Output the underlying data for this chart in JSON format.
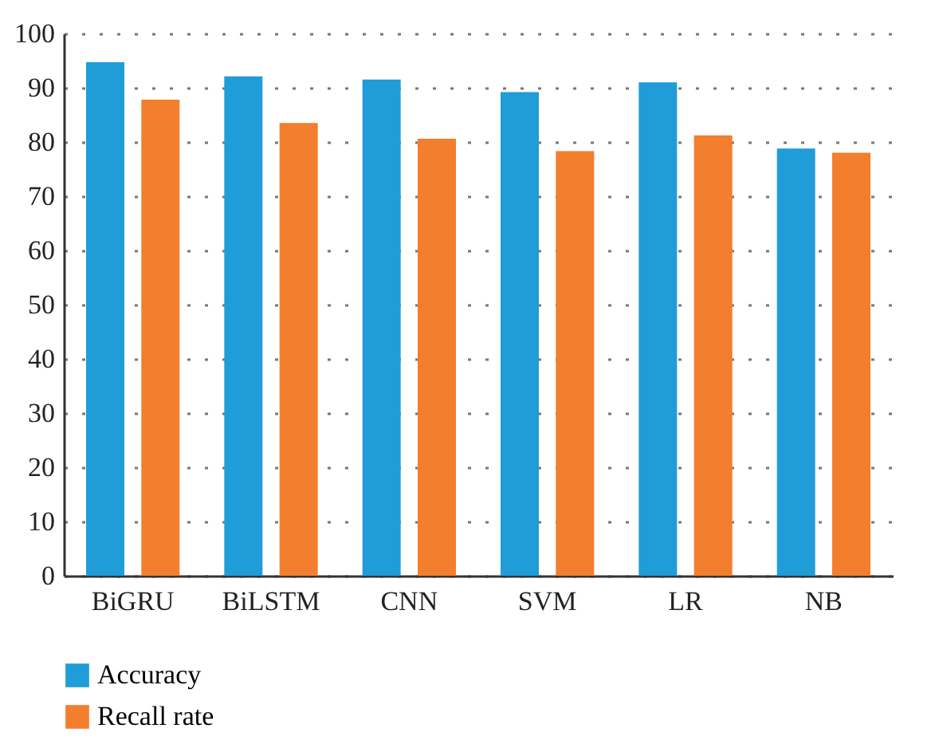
{
  "chart_data": {
    "type": "bar",
    "categories": [
      "BiGRU",
      "BiLSTM",
      "CNN",
      "SVM",
      "LR",
      "NB"
    ],
    "series": [
      {
        "name": "Accuracy",
        "color": "#209cd8",
        "values": [
          94.7,
          92.1,
          91.5,
          89.2,
          91.0,
          78.8
        ]
      },
      {
        "name": "Recall rate",
        "color": "#f37e2e",
        "values": [
          87.8,
          83.5,
          80.6,
          78.3,
          81.2,
          78.0
        ]
      }
    ],
    "ylim": [
      0,
      100
    ],
    "yticks": [
      0,
      10,
      20,
      30,
      40,
      50,
      60,
      70,
      80,
      90,
      100
    ],
    "grid": "y",
    "legend": "bottom left"
  }
}
